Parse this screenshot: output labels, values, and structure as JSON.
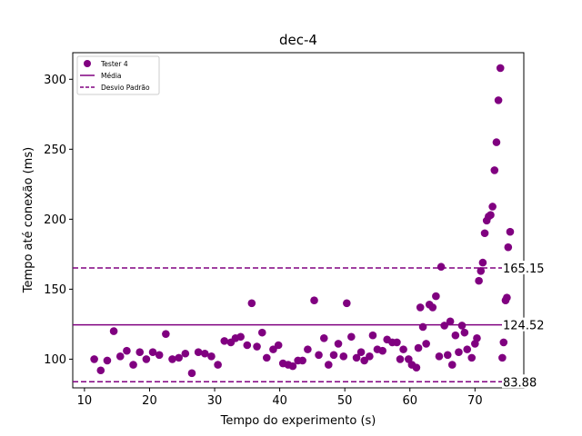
{
  "chart_data": {
    "type": "scatter",
    "title": "dec-4",
    "xlabel": "Tempo do experimento (s)",
    "ylabel": "Tempo até conexão (ms)",
    "xlim": [
      8.2,
      77.5
    ],
    "ylim": [
      79.5,
      319.0
    ],
    "xticks": [
      10,
      20,
      30,
      40,
      50,
      60,
      70
    ],
    "yticks": [
      100,
      150,
      200,
      250,
      300
    ],
    "grid": false,
    "legend_position": "top-left",
    "colors": {
      "points": "#800080",
      "mean": "#800080",
      "std": "#800080"
    },
    "legend": [
      {
        "label": "Tester 4",
        "kind": "marker"
      },
      {
        "label": "Média",
        "kind": "solid-line"
      },
      {
        "label": "Desvio Padrão",
        "kind": "dashed-line"
      }
    ],
    "mean": {
      "value": 124.52,
      "label": "124.52"
    },
    "std_upper": {
      "value": 165.15,
      "label": "165.15"
    },
    "std_lower": {
      "value": 83.88,
      "label": "83.88"
    },
    "series": [
      {
        "name": "Tester 4",
        "points": [
          [
            11.5,
            100
          ],
          [
            12.5,
            92
          ],
          [
            13.5,
            99
          ],
          [
            14.5,
            120
          ],
          [
            15.5,
            102
          ],
          [
            16.5,
            106
          ],
          [
            17.5,
            96
          ],
          [
            18.5,
            105
          ],
          [
            19.5,
            100
          ],
          [
            20.5,
            105
          ],
          [
            21.5,
            103
          ],
          [
            22.5,
            118
          ],
          [
            23.5,
            100
          ],
          [
            24.5,
            101
          ],
          [
            25.5,
            104
          ],
          [
            26.5,
            90
          ],
          [
            27.5,
            105
          ],
          [
            28.5,
            104
          ],
          [
            29.5,
            102
          ],
          [
            30.5,
            96
          ],
          [
            31.5,
            113
          ],
          [
            32.5,
            112
          ],
          [
            33.2,
            115
          ],
          [
            34.0,
            116
          ],
          [
            35.0,
            110
          ],
          [
            35.7,
            140
          ],
          [
            36.5,
            109
          ],
          [
            37.3,
            119
          ],
          [
            38.0,
            101
          ],
          [
            39.0,
            107
          ],
          [
            39.8,
            110
          ],
          [
            40.5,
            97
          ],
          [
            41.3,
            96
          ],
          [
            42.0,
            95
          ],
          [
            42.8,
            99
          ],
          [
            43.5,
            99
          ],
          [
            44.3,
            107
          ],
          [
            45.3,
            142
          ],
          [
            46.0,
            103
          ],
          [
            46.8,
            115
          ],
          [
            47.5,
            96
          ],
          [
            48.3,
            103
          ],
          [
            49.0,
            111
          ],
          [
            49.8,
            102
          ],
          [
            50.3,
            140
          ],
          [
            51.0,
            116
          ],
          [
            51.8,
            101
          ],
          [
            52.5,
            105
          ],
          [
            53.0,
            99
          ],
          [
            53.8,
            102
          ],
          [
            54.3,
            117
          ],
          [
            55.0,
            107
          ],
          [
            55.8,
            106
          ],
          [
            56.5,
            114
          ],
          [
            57.3,
            112
          ],
          [
            58.0,
            112
          ],
          [
            58.5,
            100
          ],
          [
            59.0,
            107
          ],
          [
            59.8,
            100
          ],
          [
            60.3,
            96
          ],
          [
            61.0,
            94
          ],
          [
            61.3,
            108
          ],
          [
            61.6,
            137
          ],
          [
            62.0,
            123
          ],
          [
            62.5,
            111
          ],
          [
            63.0,
            139
          ],
          [
            63.5,
            137
          ],
          [
            64.0,
            145
          ],
          [
            64.5,
            102
          ],
          [
            64.8,
            166
          ],
          [
            65.3,
            124
          ],
          [
            65.8,
            103
          ],
          [
            66.2,
            127
          ],
          [
            66.5,
            96
          ],
          [
            67.0,
            117
          ],
          [
            67.5,
            105
          ],
          [
            68.0,
            124
          ],
          [
            68.4,
            119
          ],
          [
            68.8,
            107
          ],
          [
            69.5,
            101
          ],
          [
            70.0,
            111
          ],
          [
            70.3,
            115
          ],
          [
            70.6,
            156
          ],
          [
            70.9,
            163
          ],
          [
            71.2,
            169
          ],
          [
            71.5,
            190
          ],
          [
            71.8,
            199
          ],
          [
            72.1,
            202
          ],
          [
            72.4,
            203
          ],
          [
            72.7,
            209
          ],
          [
            73.0,
            235
          ],
          [
            73.3,
            255
          ],
          [
            73.6,
            285
          ],
          [
            73.9,
            308
          ],
          [
            74.2,
            101
          ],
          [
            74.4,
            112
          ],
          [
            74.7,
            142
          ],
          [
            74.9,
            144
          ],
          [
            75.1,
            180
          ],
          [
            75.4,
            191
          ]
        ]
      }
    ]
  }
}
